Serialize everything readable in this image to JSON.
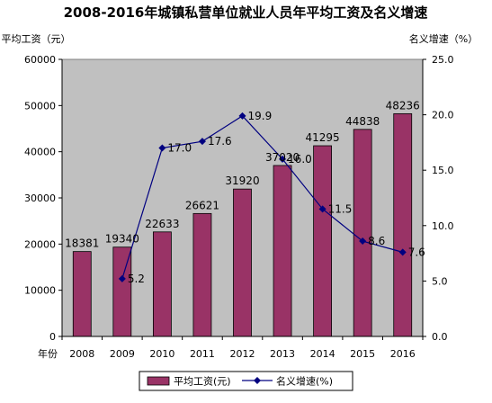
{
  "chart_data": {
    "type": "bar+line",
    "title": "2008-2016年城镇私营单位就业人员年平均工资及名义增速",
    "categories": [
      "2008",
      "2009",
      "2010",
      "2011",
      "2012",
      "2013",
      "2014",
      "2015",
      "2016"
    ],
    "x_axis_label": "年份",
    "y_left": {
      "label": "平均工资（元）",
      "ylim": [
        0,
        60000
      ],
      "ticks": [
        0,
        10000,
        20000,
        30000,
        40000,
        50000,
        60000
      ]
    },
    "y_right": {
      "label": "名义增速（%）",
      "ylim": [
        0,
        25
      ],
      "ticks": [
        "0.0",
        "5.0",
        "10.0",
        "15.0",
        "20.0",
        "25.0"
      ]
    },
    "series": [
      {
        "name": "平均工资(元)",
        "kind": "bar",
        "color": "#993366",
        "values": [
          18381,
          19340,
          22633,
          26621,
          31920,
          37020,
          41295,
          44838,
          48236
        ]
      },
      {
        "name": "名义增速(%)",
        "kind": "line",
        "color": "#000080",
        "values": [
          null,
          5.2,
          17.0,
          17.6,
          19.9,
          16.0,
          11.5,
          8.6,
          7.6
        ],
        "labels": [
          "",
          "5.2",
          "17.0",
          "17.6",
          "19.9",
          "16.0",
          "11.5",
          "8.6",
          "7.6"
        ]
      }
    ],
    "grid": false,
    "plot_background": "#c0c0c0",
    "legend_position": "bottom"
  }
}
